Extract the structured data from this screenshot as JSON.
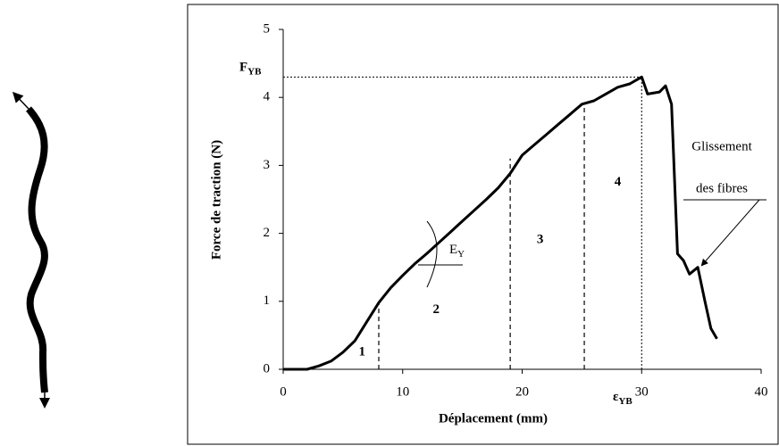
{
  "chart_data": {
    "type": "line",
    "x_label": "Déplacement (mm)",
    "y_label": "Force de traction (N)",
    "x": [
      0,
      2,
      3,
      4,
      5,
      6,
      7,
      8,
      9,
      10,
      11,
      12,
      13,
      14,
      15,
      16,
      17,
      18,
      19,
      20,
      21,
      22,
      23,
      24,
      25,
      26,
      27,
      28,
      29,
      30,
      30.5,
      31.5,
      32,
      32.5,
      33,
      33.5,
      34,
      34.7,
      35.3,
      35.8,
      36.3
    ],
    "values": [
      0,
      0,
      0.05,
      0.12,
      0.25,
      0.42,
      0.7,
      0.98,
      1.2,
      1.38,
      1.55,
      1.7,
      1.86,
      2.02,
      2.18,
      2.34,
      2.5,
      2.67,
      2.88,
      3.15,
      3.3,
      3.45,
      3.6,
      3.75,
      3.9,
      3.95,
      4.05,
      4.15,
      4.2,
      4.3,
      4.05,
      4.08,
      4.17,
      3.9,
      1.7,
      1.6,
      1.4,
      1.5,
      1.0,
      0.6,
      0.45
    ],
    "color": "#000000",
    "xlim": [
      0,
      40
    ],
    "ylim": [
      0,
      5
    ],
    "xticks": [
      0,
      10,
      20,
      30,
      40
    ],
    "yticks": [
      0,
      1,
      2,
      3,
      4,
      5
    ],
    "phase_boundaries": [
      {
        "x": 8,
        "y": 0.98
      },
      {
        "x": 19,
        "y": 3.1
      },
      {
        "x": 25.2,
        "y": 3.9
      }
    ],
    "phase_labels": [
      "1",
      "2",
      "3",
      "4"
    ],
    "yield_point": {
      "x": 30,
      "y": 4.3,
      "x_label": "ε",
      "x_label_sub": "YB",
      "y_label": "F",
      "y_label_sub": "YB"
    },
    "modulus_label": "E",
    "modulus_label_sub": "Y",
    "annotation": [
      "Glissement",
      "des fibres"
    ]
  }
}
